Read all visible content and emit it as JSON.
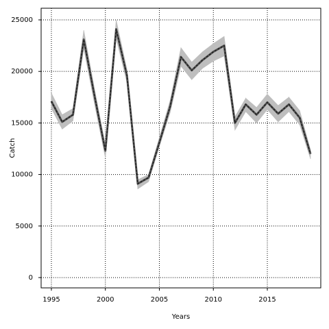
{
  "chart_data": {
    "type": "line",
    "xlabel": "Years",
    "ylabel": "Catch",
    "x": [
      1995,
      1996,
      1997,
      1998,
      1999,
      2000,
      2001,
      2002,
      2003,
      2004,
      2005,
      2006,
      2007,
      2008,
      2009,
      2010,
      2011,
      2012,
      2013,
      2014,
      2015,
      2016,
      2017,
      2018,
      2019
    ],
    "series": [
      {
        "color": "#222222",
        "values": [
          17100,
          15100,
          15800,
          23100,
          17600,
          12300,
          24100,
          19600,
          9100,
          9700,
          13100,
          16600,
          21400,
          20100,
          21100,
          21900,
          22500,
          15000,
          16800,
          15800,
          17000,
          15900,
          16800,
          15500,
          12000
        ]
      }
    ],
    "band": {
      "color": "#bebebe",
      "upper": [
        17900,
        15800,
        16400,
        24000,
        18300,
        12900,
        25000,
        20200,
        9500,
        10000,
        13600,
        17200,
        22300,
        20900,
        21900,
        22700,
        23400,
        15600,
        17400,
        16500,
        17800,
        16700,
        17500,
        16200,
        12400
      ],
      "lower": [
        16400,
        14400,
        15200,
        22200,
        16800,
        11600,
        23200,
        18900,
        8600,
        9300,
        12700,
        16000,
        20500,
        19200,
        20300,
        21000,
        21500,
        14300,
        16100,
        15000,
        16300,
        15100,
        16100,
        14800,
        11500
      ]
    },
    "xlim": [
      1994.05,
      2019.95
    ],
    "ylim": [
      -1000,
      26130
    ],
    "xticks": [
      1995,
      2000,
      2005,
      2010,
      2015
    ],
    "yticks": [
      0,
      5000,
      10000,
      15000,
      20000,
      25000
    ],
    "grid": true
  }
}
